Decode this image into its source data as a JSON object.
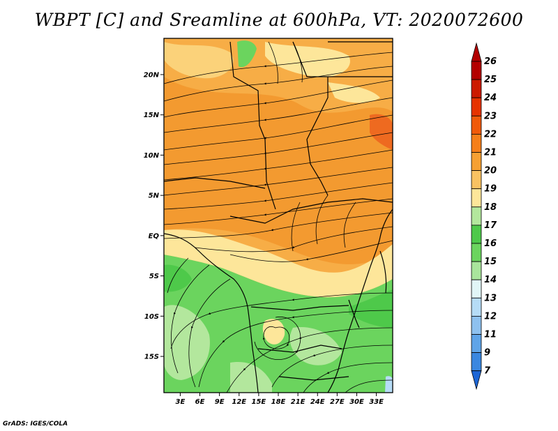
{
  "title": "WBPT [C] and Sreamline at 600hPa, VT: 2020072600",
  "credit": "GrADS: IGES/COLA",
  "map": {
    "lon_ticks": [
      "3E",
      "6E",
      "9E",
      "12E",
      "15E",
      "18E",
      "21E",
      "24E",
      "27E",
      "30E",
      "33E"
    ],
    "lon_values": [
      3,
      6,
      9,
      12,
      15,
      18,
      21,
      24,
      27,
      30,
      33
    ],
    "lat_ticks": [
      "20N",
      "15N",
      "10N",
      "5N",
      "EQ",
      "5S",
      "10S",
      "15S"
    ],
    "lat_values": [
      20,
      15,
      10,
      5,
      0,
      -5,
      -10,
      -15
    ],
    "lon_range": [
      0.5,
      35.5
    ],
    "lat_range": [
      -19.5,
      24.5
    ]
  },
  "colorbar": {
    "labels": [
      "26",
      "25",
      "24",
      "23",
      "22",
      "21",
      "20",
      "19",
      "18",
      "17",
      "16",
      "15",
      "14",
      "13",
      "12",
      "11",
      "9",
      "7"
    ],
    "colors": [
      "#b30000",
      "#cc1a00",
      "#e63300",
      "#f05a0a",
      "#f57f1a",
      "#f6a033",
      "#f9c262",
      "#fde69a",
      "#b3e79d",
      "#4ec94a",
      "#6bd45e",
      "#a9e59c",
      "#e1f6f7",
      "#b6dcf6",
      "#8ec1ef",
      "#5fa4e8",
      "#3a87e0",
      "#1d66d6"
    ]
  }
}
